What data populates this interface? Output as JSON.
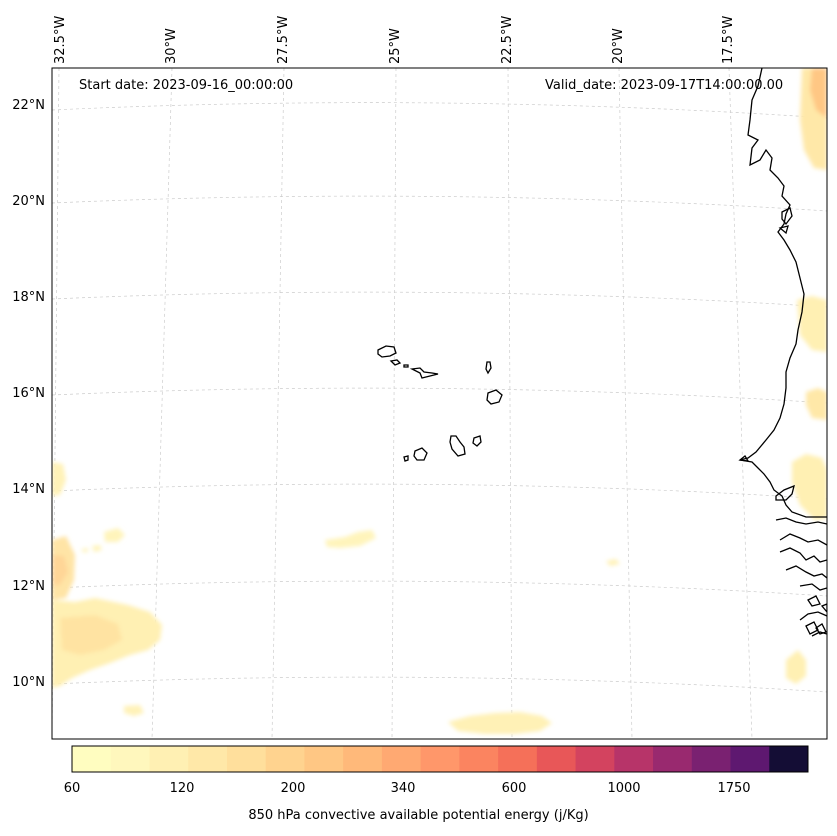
{
  "map": {
    "start_date": "Start date: 2023-09-16_00:00:00",
    "valid_date": "Valid_date: 2023-09-17T14:00:00.00",
    "lon_labels": [
      "32.5°W",
      "30°W",
      "27.5°W",
      "25°W",
      "22.5°W",
      "20°W",
      "17.5°W"
    ],
    "lat_labels": [
      "22°N",
      "20°N",
      "18°N",
      "16°N",
      "14°N",
      "12°N",
      "10°N"
    ],
    "region": "Cape Verde Islands and West African coast",
    "gridlines": true
  },
  "colorbar": {
    "title": "850 hPa convective available potential energy (j/Kg)",
    "tick_labels": [
      "60",
      "120",
      "200",
      "340",
      "600",
      "1000",
      "1750"
    ],
    "colors": [
      "#fffdc0",
      "#fff7bd",
      "#fff0b3",
      "#ffe8a8",
      "#ffdf9c",
      "#ffd38f",
      "#ffc784",
      "#ffb97a",
      "#ffa972",
      "#ff976a",
      "#fb8460",
      "#f57059",
      "#e85758",
      "#d3435f",
      "#b73469",
      "#99296f",
      "#7a2171",
      "#5e1870",
      "#140d35"
    ]
  }
}
